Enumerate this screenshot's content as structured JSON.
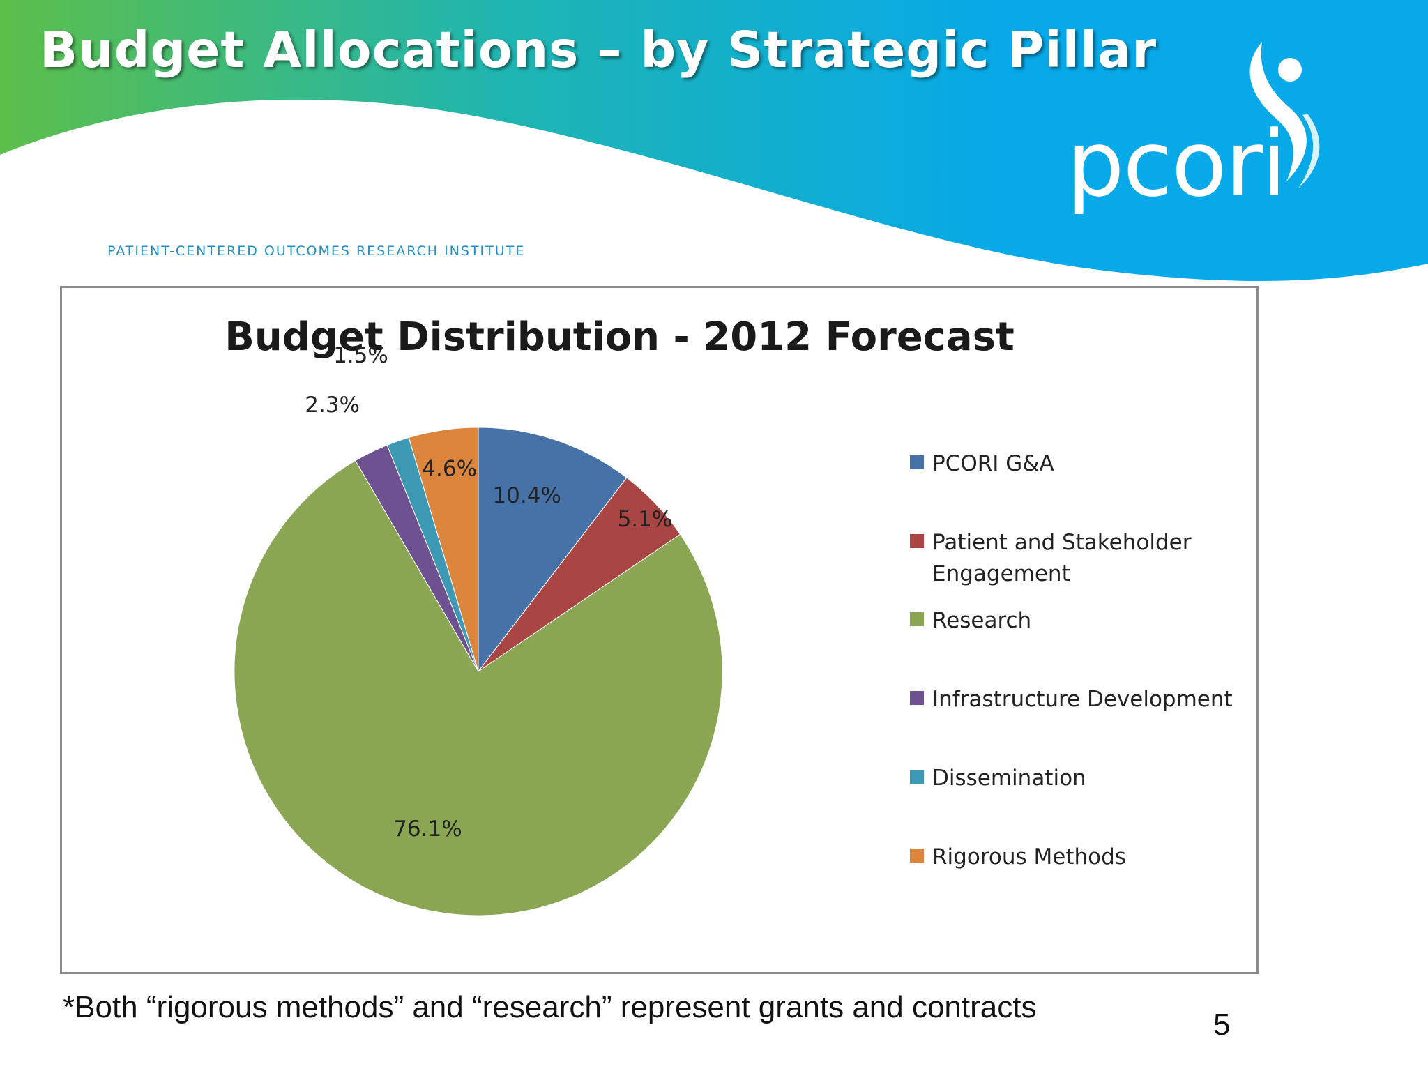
{
  "slide": {
    "title": "Budget Allocations – by Strategic Pillar",
    "tagline": "PATIENT-CENTERED OUTCOMES RESEARCH INSTITUTE",
    "footnote": "*Both “rigorous methods” and “research” represent grants and contracts",
    "page_number": "5"
  },
  "logo": {
    "wordmark": "pcori"
  },
  "colors": {
    "header_green": "#5cbf4a",
    "header_teal": "#1fb5b0",
    "header_blue": "#07a9e8",
    "tagline": "#1f8fc9"
  },
  "chart_data": {
    "type": "pie",
    "title": "Budget Distribution - 2012 Forecast",
    "unit": "%",
    "start": "12 o'clock",
    "direction": "clockwise",
    "legend_position": "right",
    "slices": [
      {
        "name": "PCORI G&A",
        "value": 10.4,
        "label": "10.4%",
        "color": "#4672a8"
      },
      {
        "name": "Patient and Stakeholder Engagement",
        "value": 5.1,
        "label": "5.1%",
        "color": "#a94543"
      },
      {
        "name": "Research",
        "value": 76.1,
        "label": "76.1%",
        "color": "#8aa652"
      },
      {
        "name": "Infrastructure Development",
        "value": 2.3,
        "label": "2.3%",
        "color": "#6d5191"
      },
      {
        "name": "Dissemination",
        "value": 1.5,
        "label": "1.5%",
        "color": "#3e9ab4"
      },
      {
        "name": "Rigorous Methods",
        "value": 4.6,
        "label": "4.6%",
        "color": "#db853d"
      }
    ]
  }
}
